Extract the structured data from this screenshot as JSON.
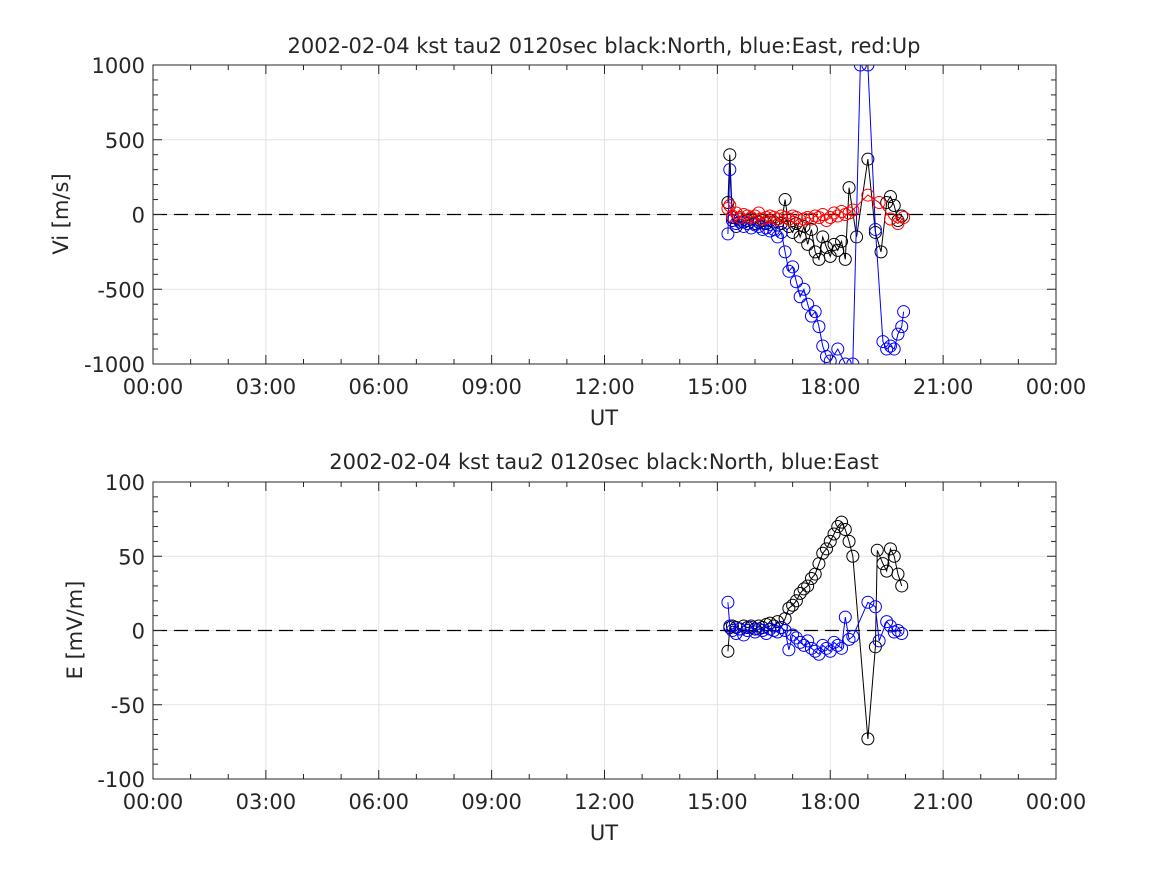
{
  "chart_data": [
    {
      "type": "scatter",
      "title": "2002-02-04 kst tau2 0120sec black:North, blue:East, red:Up",
      "xlabel": "UT",
      "ylabel": "Vi [m/s]",
      "xlim_hours": [
        0,
        24
      ],
      "ylim": [
        -1000,
        1000
      ],
      "xticks": [
        "00:00",
        "03:00",
        "06:00",
        "09:00",
        "12:00",
        "15:00",
        "18:00",
        "21:00",
        "00:00"
      ],
      "yticks": [
        "-1000",
        "-500",
        "0",
        "500",
        "1000"
      ],
      "grid": true,
      "zero_line": "dashed",
      "series": [
        {
          "name": "North",
          "color": "#000000",
          "x": [
            15.28,
            15.33,
            15.4,
            15.5,
            15.6,
            15.7,
            15.8,
            15.9,
            16.0,
            16.1,
            16.2,
            16.3,
            16.4,
            16.5,
            16.6,
            16.7,
            16.8,
            16.9,
            17.0,
            17.1,
            17.2,
            17.3,
            17.4,
            17.5,
            17.6,
            17.7,
            17.8,
            17.9,
            18.0,
            18.1,
            18.2,
            18.3,
            18.4,
            18.5,
            18.7,
            19.0,
            19.2,
            19.35,
            19.5,
            19.6,
            19.7,
            19.8,
            19.9
          ],
          "y": [
            80,
            400,
            -20,
            -80,
            -30,
            -50,
            -40,
            -30,
            -60,
            -50,
            -40,
            -60,
            -40,
            -50,
            -70,
            -60,
            100,
            -80,
            -120,
            -60,
            -150,
            -80,
            -200,
            -100,
            -250,
            -300,
            -150,
            -220,
            -280,
            -200,
            -240,
            -180,
            -300,
            180,
            -150,
            370,
            -120,
            -250,
            80,
            120,
            60,
            -40,
            -10
          ]
        },
        {
          "name": "East",
          "color": "#0000ff",
          "x": [
            15.28,
            15.33,
            15.4,
            15.5,
            15.6,
            15.7,
            15.8,
            15.9,
            16.0,
            16.1,
            16.2,
            16.3,
            16.4,
            16.5,
            16.6,
            16.7,
            16.8,
            16.9,
            17.0,
            17.1,
            17.2,
            17.3,
            17.4,
            17.5,
            17.6,
            17.7,
            17.8,
            17.9,
            18.0,
            18.2,
            18.4,
            18.6,
            18.8,
            19.0,
            19.2,
            19.4,
            19.5,
            19.6,
            19.7,
            19.8,
            19.9,
            19.95
          ],
          "y": [
            -130,
            300,
            -40,
            -60,
            -50,
            -80,
            -60,
            -90,
            -70,
            -80,
            -100,
            -90,
            -110,
            -100,
            -150,
            -120,
            -250,
            -380,
            -350,
            -450,
            -550,
            -500,
            -600,
            -680,
            -650,
            -750,
            -880,
            -950,
            -980,
            -900,
            -1000,
            -1000,
            1000,
            1000,
            -100,
            -850,
            -900,
            -880,
            -900,
            -800,
            -750,
            -650
          ]
        },
        {
          "name": "Up",
          "color": "#ff0000",
          "x": [
            15.28,
            15.33,
            15.4,
            15.5,
            15.6,
            15.7,
            15.8,
            15.9,
            16.0,
            16.1,
            16.2,
            16.3,
            16.4,
            16.5,
            16.6,
            16.7,
            16.8,
            16.9,
            17.0,
            17.1,
            17.2,
            17.3,
            17.4,
            17.5,
            17.6,
            17.7,
            17.8,
            17.9,
            18.0,
            18.1,
            18.2,
            18.3,
            18.4,
            18.5,
            18.6,
            19.0,
            19.3,
            19.6,
            19.8,
            19.95
          ],
          "y": [
            40,
            60,
            -10,
            10,
            -20,
            0,
            -10,
            -20,
            -10,
            10,
            -30,
            -20,
            -10,
            -20,
            -30,
            -10,
            -20,
            -30,
            -10,
            -20,
            -40,
            -30,
            -20,
            -30,
            -10,
            -20,
            0,
            -40,
            -20,
            10,
            -10,
            20,
            0,
            10,
            30,
            130,
            80,
            -30,
            -60,
            -20
          ]
        }
      ]
    },
    {
      "type": "scatter",
      "title": "2002-02-04 kst tau2 0120sec black:North, blue:East",
      "xlabel": "UT",
      "ylabel": "E [mV/m]",
      "xlim_hours": [
        0,
        24
      ],
      "ylim": [
        -100,
        100
      ],
      "xticks": [
        "00:00",
        "03:00",
        "06:00",
        "09:00",
        "12:00",
        "15:00",
        "18:00",
        "21:00",
        "00:00"
      ],
      "yticks": [
        "-100",
        "-50",
        "0",
        "50",
        "100"
      ],
      "grid": true,
      "zero_line": "dashed",
      "series": [
        {
          "name": "North",
          "color": "#000000",
          "x": [
            15.28,
            15.33,
            15.4,
            15.5,
            15.6,
            15.7,
            15.8,
            15.9,
            16.0,
            16.1,
            16.2,
            16.3,
            16.4,
            16.5,
            16.6,
            16.7,
            16.8,
            16.9,
            17.0,
            17.1,
            17.2,
            17.3,
            17.4,
            17.5,
            17.6,
            17.7,
            17.8,
            17.9,
            18.0,
            18.1,
            18.2,
            18.3,
            18.4,
            18.5,
            18.6,
            19.0,
            19.2,
            19.25,
            19.4,
            19.5,
            19.6,
            19.7,
            19.8,
            19.9
          ],
          "y": [
            -14,
            2,
            3,
            2,
            1,
            3,
            2,
            3,
            1,
            3,
            2,
            4,
            5,
            3,
            6,
            2,
            8,
            15,
            17,
            20,
            25,
            28,
            30,
            35,
            38,
            45,
            52,
            55,
            60,
            65,
            70,
            73,
            68,
            60,
            50,
            -73,
            -11,
            54,
            45,
            40,
            55,
            50,
            38,
            30
          ]
        },
        {
          "name": "East",
          "color": "#0000ff",
          "x": [
            15.28,
            15.33,
            15.4,
            15.5,
            15.6,
            15.7,
            15.8,
            15.9,
            16.0,
            16.1,
            16.2,
            16.3,
            16.4,
            16.5,
            16.6,
            16.7,
            16.8,
            16.9,
            17.0,
            17.1,
            17.2,
            17.3,
            17.4,
            17.5,
            17.6,
            17.7,
            17.8,
            17.9,
            18.0,
            18.1,
            18.2,
            18.3,
            18.4,
            18.5,
            18.6,
            19.0,
            19.2,
            19.3,
            19.5,
            19.6,
            19.7,
            19.8,
            19.9
          ],
          "y": [
            19,
            3,
            0,
            -2,
            1,
            -3,
            0,
            2,
            -1,
            1,
            0,
            -2,
            1,
            0,
            -1,
            2,
            0,
            -13,
            -3,
            -5,
            -8,
            -10,
            -7,
            -12,
            -14,
            -16,
            -10,
            -12,
            -14,
            -8,
            -10,
            -12,
            9,
            -6,
            -4,
            19,
            16,
            -7,
            6,
            3,
            -1,
            0,
            -2
          ]
        }
      ]
    }
  ]
}
